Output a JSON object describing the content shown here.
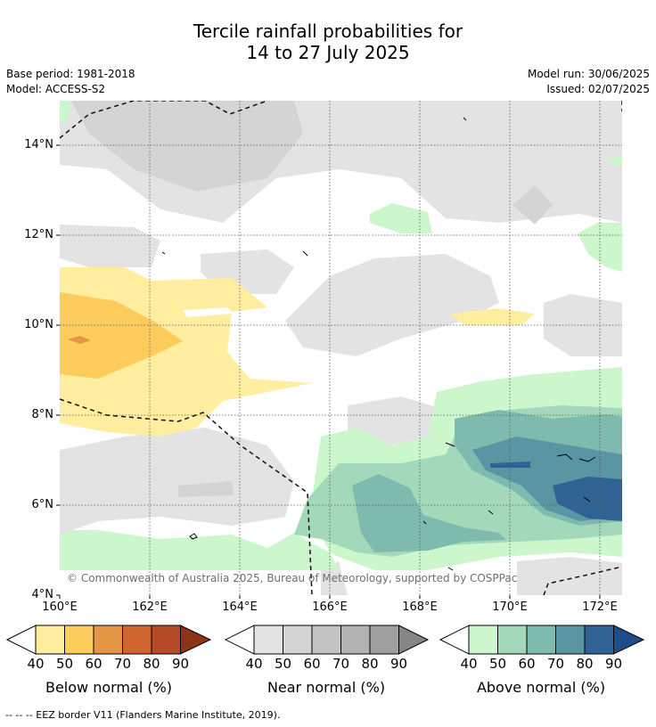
{
  "title": {
    "line1": "Tercile rainfall probabilities for",
    "line2": "14 to 27 July 2025"
  },
  "meta": {
    "base_period": "Base period: 1981-2018",
    "model": "Model: ACCESS-S2",
    "model_run": "Model run: 30/06/2025",
    "issued": "Issued: 02/07/2025"
  },
  "map": {
    "lat_labels": [
      "14°N",
      "12°N",
      "10°N",
      "8°N",
      "6°N",
      "4°N"
    ],
    "lon_labels": [
      "160°E",
      "162°E",
      "164°E",
      "166°E",
      "168°E",
      "170°E",
      "172°E"
    ],
    "copyright": "© Commonwealth of Australia 2025, Bureau of Meteorology, supported by COSPPac"
  },
  "colorbars": [
    {
      "title": "Below normal (%)",
      "ticks": [
        "40",
        "50",
        "60",
        "70",
        "80",
        "90"
      ],
      "colors": [
        "#ffeda0",
        "#fecc5c",
        "#e49646",
        "#d0662f",
        "#b44a28",
        "#8e3318"
      ]
    },
    {
      "title": "Near normal (%)",
      "ticks": [
        "40",
        "50",
        "60",
        "70",
        "80",
        "90"
      ],
      "colors": [
        "#e3e3e3",
        "#d4d4d4",
        "#c4c4c4",
        "#b3b3b3",
        "#9f9f9f",
        "#858585"
      ]
    },
    {
      "title": "Above normal (%)",
      "ticks": [
        "40",
        "50",
        "60",
        "70",
        "80",
        "90"
      ],
      "colors": [
        "#ccf7cc",
        "#a3d8bb",
        "#7ebaad",
        "#5a95a4",
        "#306394",
        "#1d4e89"
      ]
    }
  ],
  "footer": "--  --  -- EEZ border V11 (Flanders Marine Institute, 2019).",
  "colors": {
    "near40": "#e3e3e3",
    "near50": "#d4d4d4",
    "below40": "#ffeda0",
    "below50": "#fecc5c",
    "above40": "#ccf7cc",
    "above50": "#a3d8bb",
    "above60": "#7ebaad",
    "above70": "#5a95a4",
    "above80": "#306394"
  }
}
